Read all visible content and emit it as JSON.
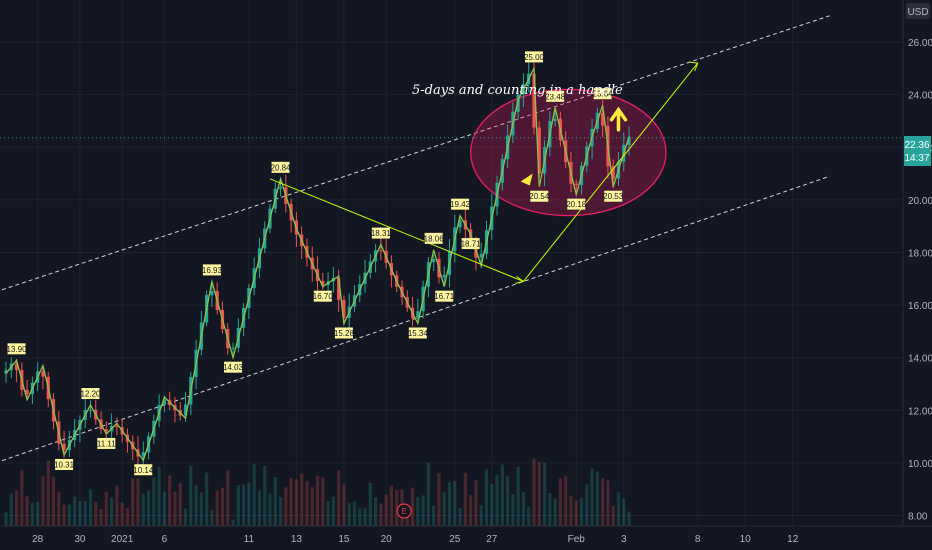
{
  "chart_data": {
    "type": "candlestick",
    "currency": "USD",
    "price_axis": {
      "ylim": [
        7.6,
        27.6
      ],
      "tick_labels": [
        "26.00",
        "24.00",
        "22.00",
        "20.00",
        "18.00",
        "16.00",
        "14.00",
        "12.00",
        "10.00",
        "8.00"
      ],
      "tick_values": [
        26,
        24,
        22,
        20,
        18,
        16,
        14,
        12,
        10,
        8
      ]
    },
    "time_axis": {
      "tick_labels": [
        "28",
        "30",
        "2021",
        "6",
        "11",
        "13",
        "15",
        "20",
        "25",
        "27",
        "Feb",
        "3",
        "8",
        "10",
        "12"
      ],
      "tick_bar_index": [
        6,
        14,
        22,
        30,
        46,
        55,
        64,
        72,
        85,
        92,
        108,
        117,
        131,
        140,
        149
      ]
    },
    "last_price": {
      "value": 22.36,
      "label": "22.36",
      "countdown": "14:37"
    },
    "annotation": {
      "text": "5-days and counting in a handle"
    },
    "zigzag_pivots": [
      {
        "label": "13.90",
        "value": 13.9,
        "type": "high"
      },
      {
        "label": "10.31",
        "value": 10.3,
        "type": "low"
      },
      {
        "label": "12.20",
        "value": 12.2,
        "type": "high"
      },
      {
        "label": "11.11",
        "value": 11.1,
        "type": "low"
      },
      {
        "label": "10.14",
        "value": 10.1,
        "type": "low"
      },
      {
        "label": "16.93",
        "value": 16.9,
        "type": "high"
      },
      {
        "label": "14.03",
        "value": 14.0,
        "type": "low"
      },
      {
        "label": "20.84",
        "value": 20.8,
        "type": "high"
      },
      {
        "label": "16.70",
        "value": 16.7,
        "type": "low"
      },
      {
        "label": "15.28",
        "value": 15.3,
        "type": "low"
      },
      {
        "label": "18.31",
        "value": 18.3,
        "type": "high"
      },
      {
        "label": "15.34",
        "value": 15.3,
        "type": "low"
      },
      {
        "label": "18.06",
        "value": 18.1,
        "type": "high"
      },
      {
        "label": "16.71",
        "value": 16.7,
        "type": "low"
      },
      {
        "label": "19.42",
        "value": 19.4,
        "type": "high"
      },
      {
        "label": "18.71",
        "value": 18.7,
        "type": "low"
      },
      {
        "label": "25.00",
        "value": 25.0,
        "type": "high"
      },
      {
        "label": "20.54",
        "value": 20.5,
        "type": "low"
      },
      {
        "label": "23.48",
        "value": 23.5,
        "type": "high"
      },
      {
        "label": "20.18",
        "value": 20.2,
        "type": "low"
      },
      {
        "label": "23.64",
        "value": 23.6,
        "type": "high"
      },
      {
        "label": "20.53",
        "value": 20.5,
        "type": "low"
      }
    ],
    "series_path": [
      {
        "bar": 0,
        "value": 13.4
      },
      {
        "bar": 2,
        "value": 13.9
      },
      {
        "bar": 4,
        "value": 12.4
      },
      {
        "bar": 7,
        "value": 13.7
      },
      {
        "bar": 11,
        "value": 10.3
      },
      {
        "bar": 16,
        "value": 12.2
      },
      {
        "bar": 19,
        "value": 11.1
      },
      {
        "bar": 21,
        "value": 11.5
      },
      {
        "bar": 26,
        "value": 10.1
      },
      {
        "bar": 30,
        "value": 12.5
      },
      {
        "bar": 34,
        "value": 11.7
      },
      {
        "bar": 39,
        "value": 16.9
      },
      {
        "bar": 43,
        "value": 14.0
      },
      {
        "bar": 52,
        "value": 20.8
      },
      {
        "bar": 55,
        "value": 18.9
      },
      {
        "bar": 60,
        "value": 16.7
      },
      {
        "bar": 63,
        "value": 17.1
      },
      {
        "bar": 64,
        "value": 15.3
      },
      {
        "bar": 71,
        "value": 18.3
      },
      {
        "bar": 74,
        "value": 16.9
      },
      {
        "bar": 78,
        "value": 15.3
      },
      {
        "bar": 81,
        "value": 18.1
      },
      {
        "bar": 83,
        "value": 16.7
      },
      {
        "bar": 86,
        "value": 19.4
      },
      {
        "bar": 88,
        "value": 18.7
      },
      {
        "bar": 90,
        "value": 17.5
      },
      {
        "bar": 97,
        "value": 23.8
      },
      {
        "bar": 100,
        "value": 25.0
      },
      {
        "bar": 101,
        "value": 20.5
      },
      {
        "bar": 104,
        "value": 23.5
      },
      {
        "bar": 108,
        "value": 20.2
      },
      {
        "bar": 111,
        "value": 22.4
      },
      {
        "bar": 113,
        "value": 23.6
      },
      {
        "bar": 115,
        "value": 20.5
      },
      {
        "bar": 118,
        "value": 22.4
      }
    ],
    "channel_upper": [
      {
        "bar": -2,
        "value": 16.5
      },
      {
        "bar": 156,
        "value": 27.0
      }
    ],
    "channel_lower": [
      {
        "bar": -2,
        "value": 10.0
      },
      {
        "bar": 156,
        "value": 20.9
      }
    ],
    "triangle_upper_line": [
      {
        "bar": 50,
        "value": 20.8
      },
      {
        "bar": 98,
        "value": 16.9
      }
    ],
    "projection_path": [
      {
        "bar": 98,
        "value": 16.9
      },
      {
        "bar": 131,
        "value": 25.2
      }
    ],
    "handle_ellipse": {
      "bar_range": [
        88,
        125
      ],
      "value_range": [
        19.4,
        24.2
      ],
      "fill": "#e91e63",
      "stroke": "#e91e63"
    },
    "colors": {
      "background": "#131722",
      "up": "#26a69a",
      "down": "#ef5350",
      "zigzag": "#8bc34a",
      "trendline": "#c6ff00",
      "channel": "#d1d4dc",
      "arrow": "#ffeb3b",
      "last_price": "#26a69a"
    },
    "event_marker": {
      "label": "E",
      "bar": 72
    }
  }
}
